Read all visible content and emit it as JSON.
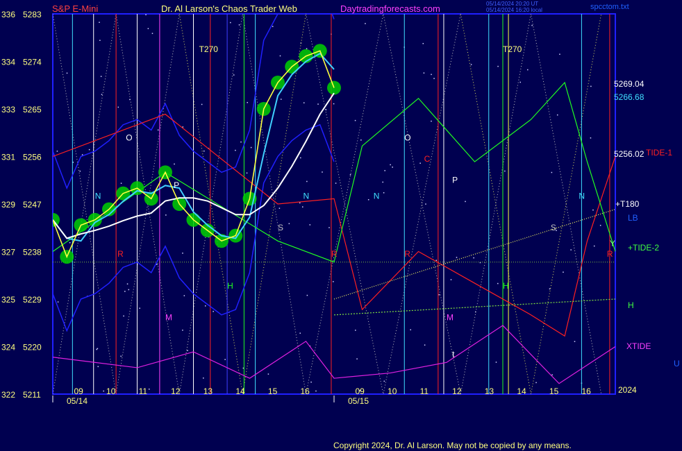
{
  "header": {
    "instrument": "S&P E-Mini",
    "site_title": "Dr. Al Larson's Chaos Trader Web",
    "website": "Daytradingforecasts.com",
    "timestamp_line1": "05/14/2024 20:20 UT",
    "timestamp_line2": "05/14/2024 16:20 local",
    "filename": "spcctom.txt",
    "year": "2024"
  },
  "footer": {
    "copyright": "Copyright 2024, Dr. Al Larson. May not be copied by any means."
  },
  "colors": {
    "background": "#000050",
    "plot_border": "#2020ff",
    "price": "#ffff40",
    "ma_fast": "#40d0ff",
    "ma_slow": "#ffffff",
    "markers": "#00d000",
    "red_line": "#ff2020",
    "green_line": "#20ff20",
    "xtide": "#e020e0",
    "blue_band": "#2020ff"
  },
  "chart_data": {
    "type": "line",
    "title": "S&P E-Mini",
    "y_left_outer_ticks": [
      "336",
      "334",
      "333",
      "331",
      "329",
      "327",
      "325",
      "324",
      "322"
    ],
    "y_left_prices": [
      "5283",
      "5274",
      "5265",
      "5256",
      "5247",
      "5238",
      "5229",
      "5220",
      "5211"
    ],
    "ylim": [
      5211,
      5283
    ],
    "x_hour_ticks": [
      "09",
      "10",
      "11",
      "12",
      "13",
      "14",
      "15",
      "16",
      "09",
      "10",
      "11",
      "12",
      "13",
      "14",
      "15",
      "16"
    ],
    "x_dates": [
      "05/14",
      "05/15"
    ],
    "x_days": 2,
    "vertical_line_labels": [
      "T270",
      "T270"
    ],
    "right_labels": {
      "price_1": "5269.04",
      "price_2": "5266.68",
      "price_3": "5256.02",
      "tide1": "TIDE-1",
      "t180": "+T180",
      "lb": "LB",
      "tide2": "+TIDE-2",
      "h": "H",
      "xtide": "XTIDE",
      "u": "U"
    },
    "letters": {
      "O": "O",
      "C": "C",
      "P": "P",
      "N": "N",
      "S": "S",
      "H": "H",
      "M": "M",
      "R": "R",
      "t": "t",
      "Y": "Y"
    },
    "series": [
      {
        "name": "S&P E-Mini",
        "x": [
          0.0,
          0.05,
          0.1,
          0.15,
          0.2,
          0.25,
          0.3,
          0.35,
          0.4,
          0.45,
          0.5,
          0.55,
          0.6,
          0.65,
          0.7,
          0.75,
          0.8,
          0.85,
          0.9,
          0.95,
          1.0
        ],
        "values": [
          5244,
          5237,
          5243,
          5244,
          5246,
          5249,
          5250,
          5248,
          5253,
          5247,
          5244,
          5242,
          5240,
          5241,
          5248,
          5265,
          5270,
          5273,
          5275,
          5276,
          5269
        ]
      },
      {
        "name": "TIDE-1",
        "x": [
          0,
          0.4,
          0.8,
          1.0,
          1.1,
          1.3,
          1.5,
          1.7,
          1.82,
          1.9,
          2.0
        ],
        "values": [
          5256,
          5264,
          5247,
          5248,
          5227,
          5238,
          5232,
          5226,
          5222,
          5240,
          5256
        ]
      },
      {
        "name": "TIDE-2",
        "x": [
          0,
          0.4,
          0.8,
          1.0,
          1.1,
          1.3,
          1.5,
          1.7,
          1.82,
          1.9,
          2.0
        ],
        "values": [
          5238,
          5253,
          5240,
          5236,
          5258,
          5267,
          5255,
          5263,
          5270,
          5255,
          5238
        ]
      },
      {
        "name": "XTIDE",
        "x": [
          0,
          0.3,
          0.5,
          0.7,
          0.9,
          1.0,
          1.2,
          1.4,
          1.6,
          1.8,
          2.0
        ],
        "values": [
          5218,
          5216,
          5219,
          5214,
          5221,
          5214,
          5215,
          5217,
          5224,
          5213,
          5220
        ]
      },
      {
        "name": "H",
        "x": [
          1.0,
          2.0
        ],
        "values": [
          5226,
          5229
        ]
      },
      {
        "name": "+T180",
        "x": [
          1.0,
          2.0
        ],
        "values": [
          5229,
          5246
        ]
      }
    ]
  }
}
